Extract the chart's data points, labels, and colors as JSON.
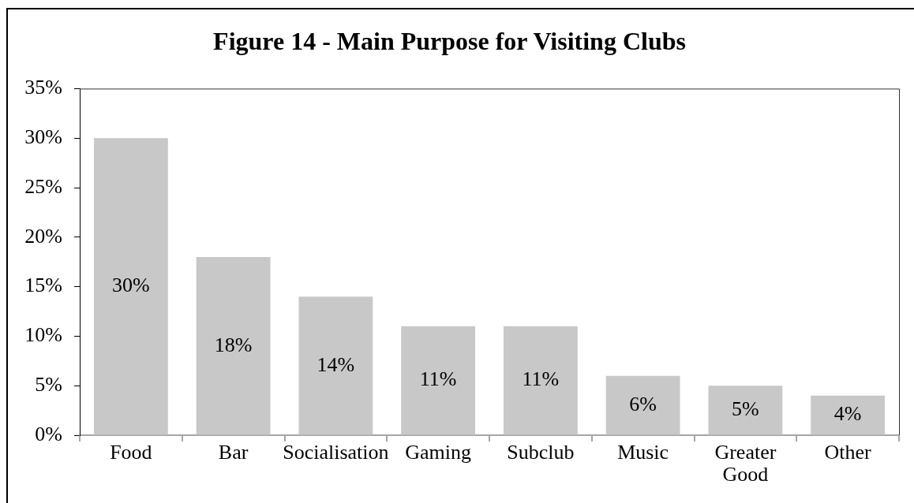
{
  "chart_data": {
    "type": "bar",
    "title": "Figure 14 - Main Purpose for Visiting Clubs",
    "categories": [
      "Food",
      "Bar",
      "Socialisation",
      "Gaming",
      "Subclub",
      "Music",
      "Greater Good",
      "Other"
    ],
    "values": [
      30,
      18,
      14,
      11,
      11,
      6,
      5,
      4
    ],
    "value_labels": [
      "30%",
      "18%",
      "14%",
      "11%",
      "11%",
      "6%",
      "5%",
      "4%"
    ],
    "color": "#c8c8c8",
    "ylim": [
      0,
      35
    ],
    "yticks": [
      {
        "value": 0,
        "label": "0%"
      },
      {
        "value": 5,
        "label": "5%"
      },
      {
        "value": 10,
        "label": "10%"
      },
      {
        "value": 15,
        "label": "15%"
      },
      {
        "value": 20,
        "label": "20%"
      },
      {
        "value": 25,
        "label": "25%"
      },
      {
        "value": 30,
        "label": "30%"
      },
      {
        "value": 35,
        "label": "35%"
      }
    ]
  }
}
